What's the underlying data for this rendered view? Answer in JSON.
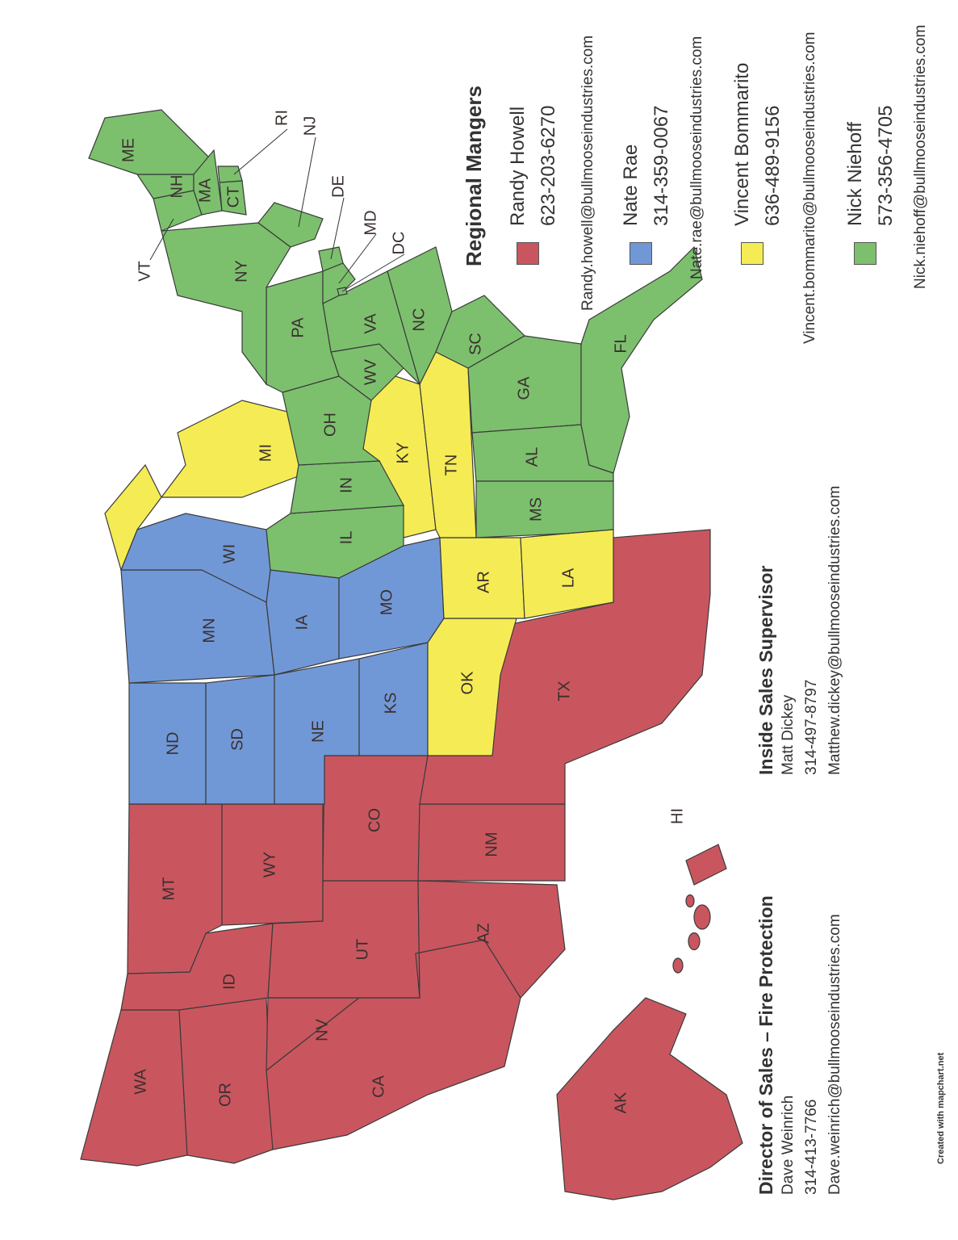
{
  "colors": {
    "randy": "#c9565f",
    "nate": "#7198d6",
    "vincent": "#f5ec55",
    "nick": "#7cc06d"
  },
  "legend": {
    "title": "Regional Mangers",
    "managers": [
      {
        "key": "randy",
        "name": "Randy Howell",
        "phone": "623-203-6270",
        "email": "Randy.howell@bullmooseindustries.com"
      },
      {
        "key": "nate",
        "name": "Nate Rae",
        "phone": "314-359-0067",
        "email": "Nate.rae@bullmooseindustries.com"
      },
      {
        "key": "vincent",
        "name": "Vincent Bommarito",
        "phone": "636-489-9156",
        "email": "Vincent.bommarito@bullmooseindustries.com"
      },
      {
        "key": "nick",
        "name": "Nick Niehoff",
        "phone": "573-356-4705",
        "email": "Nick.niehoff@bullmooseindustries.com"
      }
    ]
  },
  "director": {
    "title": "Director of Sales – Fire Protection",
    "name": "Dave Weinrich",
    "phone": "314-413-7766",
    "email": "Dave.weinrich@bullmooseindustries.com"
  },
  "inside_sales": {
    "title": "Inside Sales Supervisor",
    "name": "Matt Dickey",
    "phone": "314-497-8797",
    "email": "Matthew.dickey@bullmooseindustries.com"
  },
  "credit": "Created with mapchart.net",
  "states": [
    {
      "abbr": "WA",
      "manager": "randy"
    },
    {
      "abbr": "OR",
      "manager": "randy"
    },
    {
      "abbr": "CA",
      "manager": "randy"
    },
    {
      "abbr": "NV",
      "manager": "randy"
    },
    {
      "abbr": "ID",
      "manager": "randy"
    },
    {
      "abbr": "MT",
      "manager": "randy"
    },
    {
      "abbr": "WY",
      "manager": "randy"
    },
    {
      "abbr": "UT",
      "manager": "randy"
    },
    {
      "abbr": "AZ",
      "manager": "randy"
    },
    {
      "abbr": "CO",
      "manager": "randy"
    },
    {
      "abbr": "NM",
      "manager": "randy"
    },
    {
      "abbr": "TX",
      "manager": "randy"
    },
    {
      "abbr": "AK",
      "manager": "randy"
    },
    {
      "abbr": "HI",
      "manager": "randy"
    },
    {
      "abbr": "ND",
      "manager": "nate"
    },
    {
      "abbr": "SD",
      "manager": "nate"
    },
    {
      "abbr": "NE",
      "manager": "nate"
    },
    {
      "abbr": "KS",
      "manager": "nate"
    },
    {
      "abbr": "MN",
      "manager": "nate"
    },
    {
      "abbr": "IA",
      "manager": "nate"
    },
    {
      "abbr": "MO",
      "manager": "nate"
    },
    {
      "abbr": "WI",
      "manager": "nate"
    },
    {
      "abbr": "OK",
      "manager": "vincent"
    },
    {
      "abbr": "AR",
      "manager": "vincent"
    },
    {
      "abbr": "LA",
      "manager": "vincent"
    },
    {
      "abbr": "MI",
      "manager": "vincent"
    },
    {
      "abbr": "KY",
      "manager": "vincent"
    },
    {
      "abbr": "TN",
      "manager": "vincent"
    },
    {
      "abbr": "IL",
      "manager": "nick"
    },
    {
      "abbr": "IN",
      "manager": "nick"
    },
    {
      "abbr": "OH",
      "manager": "nick"
    },
    {
      "abbr": "WV",
      "manager": "nick"
    },
    {
      "abbr": "VA",
      "manager": "nick"
    },
    {
      "abbr": "NC",
      "manager": "nick"
    },
    {
      "abbr": "SC",
      "manager": "nick"
    },
    {
      "abbr": "GA",
      "manager": "nick"
    },
    {
      "abbr": "AL",
      "manager": "nick"
    },
    {
      "abbr": "MS",
      "manager": "nick"
    },
    {
      "abbr": "FL",
      "manager": "nick"
    },
    {
      "abbr": "PA",
      "manager": "nick"
    },
    {
      "abbr": "NY",
      "manager": "nick"
    },
    {
      "abbr": "VT",
      "manager": "nick"
    },
    {
      "abbr": "NH",
      "manager": "nick"
    },
    {
      "abbr": "ME",
      "manager": "nick"
    },
    {
      "abbr": "MA",
      "manager": "nick"
    },
    {
      "abbr": "CT",
      "manager": "nick"
    },
    {
      "abbr": "RI",
      "manager": "nick"
    },
    {
      "abbr": "NJ",
      "manager": "nick"
    },
    {
      "abbr": "DE",
      "manager": "nick"
    },
    {
      "abbr": "MD",
      "manager": "nick"
    },
    {
      "abbr": "DC",
      "manager": "nick"
    }
  ]
}
